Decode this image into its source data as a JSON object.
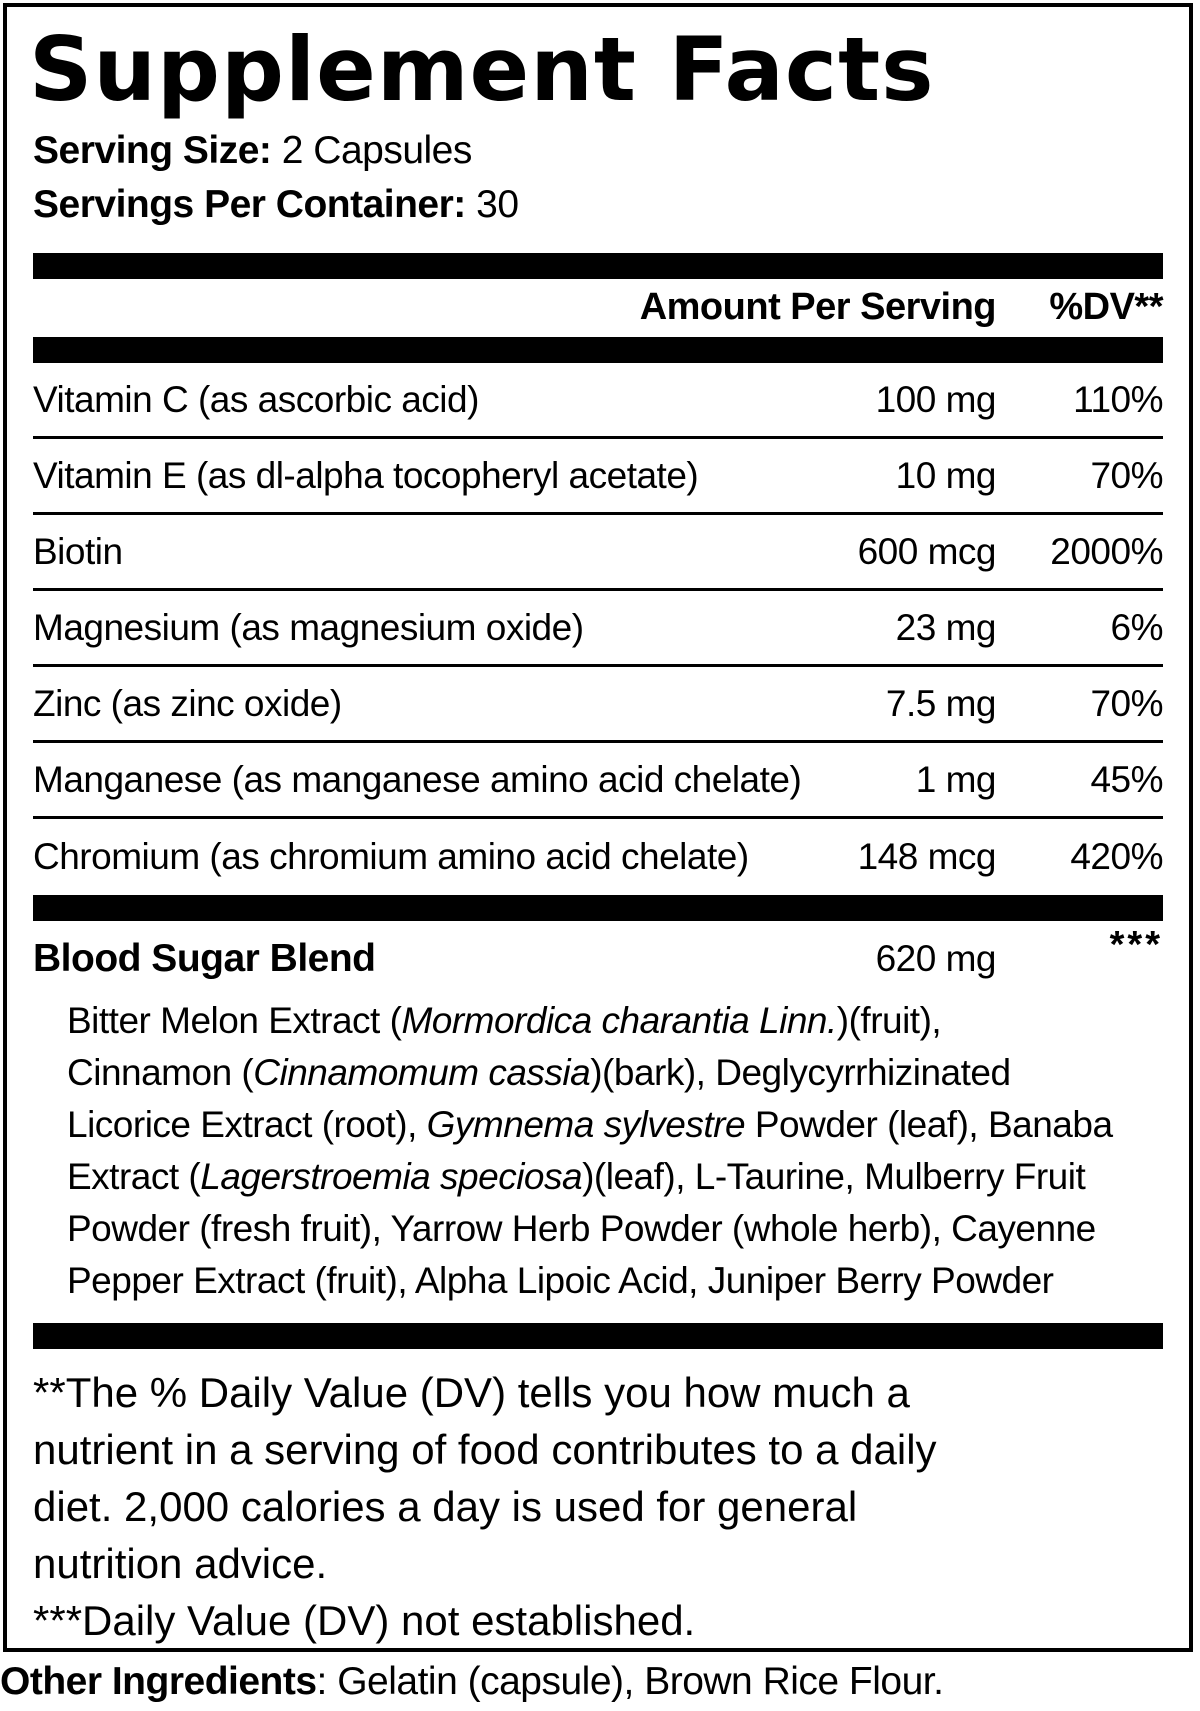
{
  "title": "Supplement Facts",
  "serving": {
    "size_label": "Serving Size:",
    "size_value": " 2 Capsules",
    "container_label": "Servings Per Container:",
    "container_value": " 30"
  },
  "table": {
    "amount_header": "Amount Per Serving",
    "dv_header": "%DV**",
    "rows": [
      {
        "name": "Vitamin C (as ascorbic acid)",
        "amount": "100 mg",
        "dv": "110%"
      },
      {
        "name": "Vitamin E (as dl-alpha tocopheryl acetate)",
        "amount": "10 mg",
        "dv": "70%"
      },
      {
        "name": "Biotin",
        "amount": "600 mcg",
        "dv": "2000%"
      },
      {
        "name": "Magnesium (as magnesium oxide)",
        "amount": "23 mg",
        "dv": "6%"
      },
      {
        "name": "Zinc (as zinc oxide)",
        "amount": "7.5 mg",
        "dv": "70%"
      },
      {
        "name": "Manganese (as manganese amino acid chelate)",
        "amount": "1 mg",
        "dv": "45%"
      },
      {
        "name": "Chromium (as chromium amino acid chelate)",
        "amount": "148 mcg",
        "dv": "420%"
      }
    ]
  },
  "blend": {
    "name": "Blood Sugar Blend",
    "amount": "620 mg",
    "dv": "***",
    "ingredient_lines": [
      [
        {
          "t": "Bitter Melon Extract ("
        },
        {
          "t": "Mormordica charantia Linn.",
          "i": true
        },
        {
          "t": ")(fruit),"
        }
      ],
      [
        {
          "t": "Cinnamon ("
        },
        {
          "t": "Cinnamomum cassia",
          "i": true
        },
        {
          "t": ")(bark), Deglycyrrhizinated"
        }
      ],
      [
        {
          "t": "Licorice Extract (root), "
        },
        {
          "t": "Gymnema sylvestre",
          "i": true
        },
        {
          "t": " Powder (leaf), Banaba"
        }
      ],
      [
        {
          "t": "Extract ("
        },
        {
          "t": "Lagerstroemia speciosa",
          "i": true
        },
        {
          "t": ")(leaf), L-Taurine, Mulberry Fruit"
        }
      ],
      [
        {
          "t": "Powder (fresh fruit), Yarrow Herb Powder (whole herb), Cayenne"
        }
      ],
      [
        {
          "t": "Pepper Extract (fruit), Alpha Lipoic Acid, Juniper Berry Powder"
        }
      ]
    ]
  },
  "footnotes": {
    "dv_note_lines": [
      "**The % Daily Value (DV) tells you how much a",
      "nutrient in a serving of food contributes to a daily",
      "diet. 2,000 calories a day is used for general",
      "nutrition advice."
    ],
    "not_established": "***Daily Value (DV) not established."
  },
  "other_ingredients": {
    "label": "Other Ingredients",
    "value": ": Gelatin (capsule), Brown Rice Flour."
  },
  "colors": {
    "text": "#000000",
    "background": "#ffffff"
  }
}
